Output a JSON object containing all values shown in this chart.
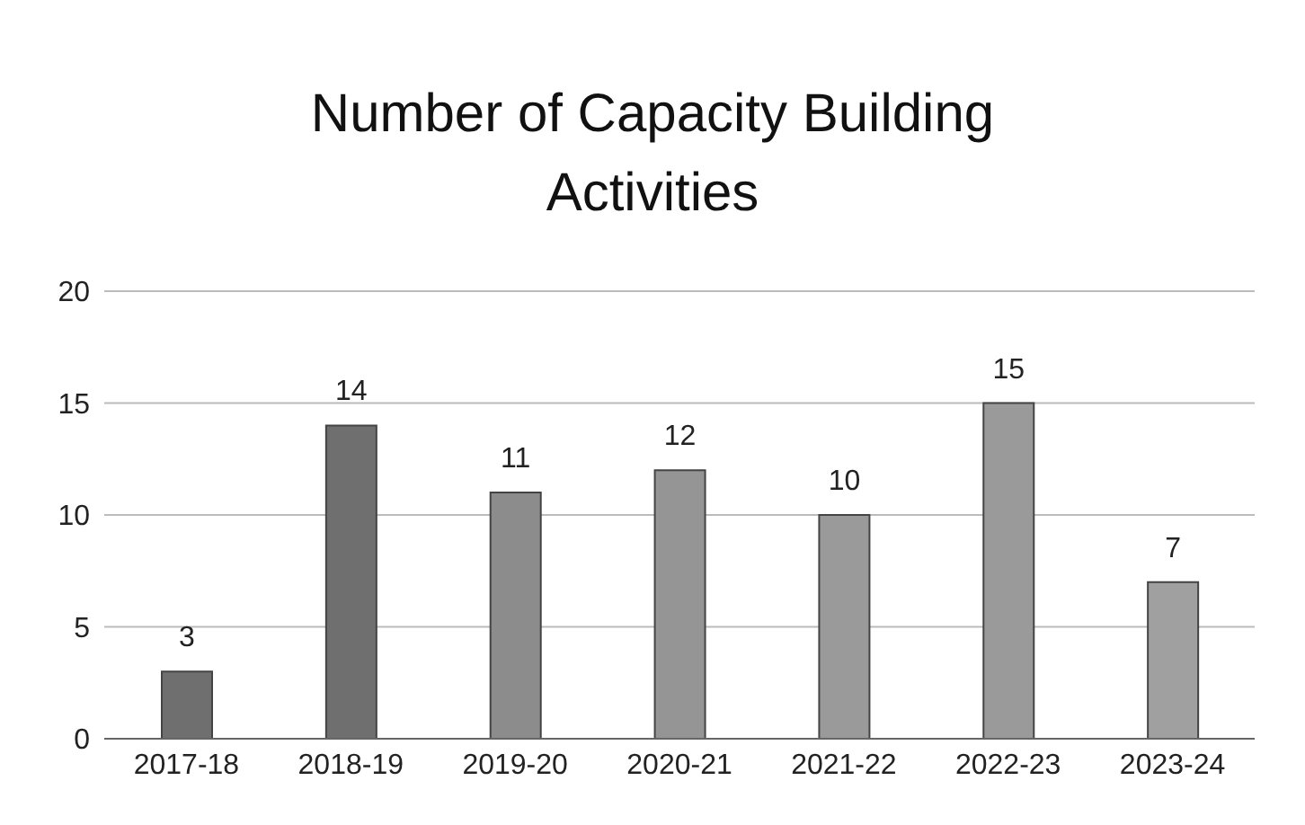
{
  "chart_data": {
    "type": "bar",
    "title": "Number of Capacity Building Activities",
    "categories": [
      "2017-18",
      "2018-19",
      "2019-20",
      "2020-21",
      "2021-22",
      "2022-23",
      "2023-24"
    ],
    "values": [
      3,
      14,
      11,
      12,
      10,
      15,
      7
    ],
    "colors": [
      "#6f6f6f",
      "#6f6f6f",
      "#8c8c8c",
      "#959595",
      "#9a9a9a",
      "#9a9a9a",
      "#a0a0a0"
    ],
    "ylim": [
      0,
      20
    ],
    "yticks": [
      0,
      5,
      10,
      15,
      20
    ],
    "grid": "y",
    "data_labels": true
  }
}
